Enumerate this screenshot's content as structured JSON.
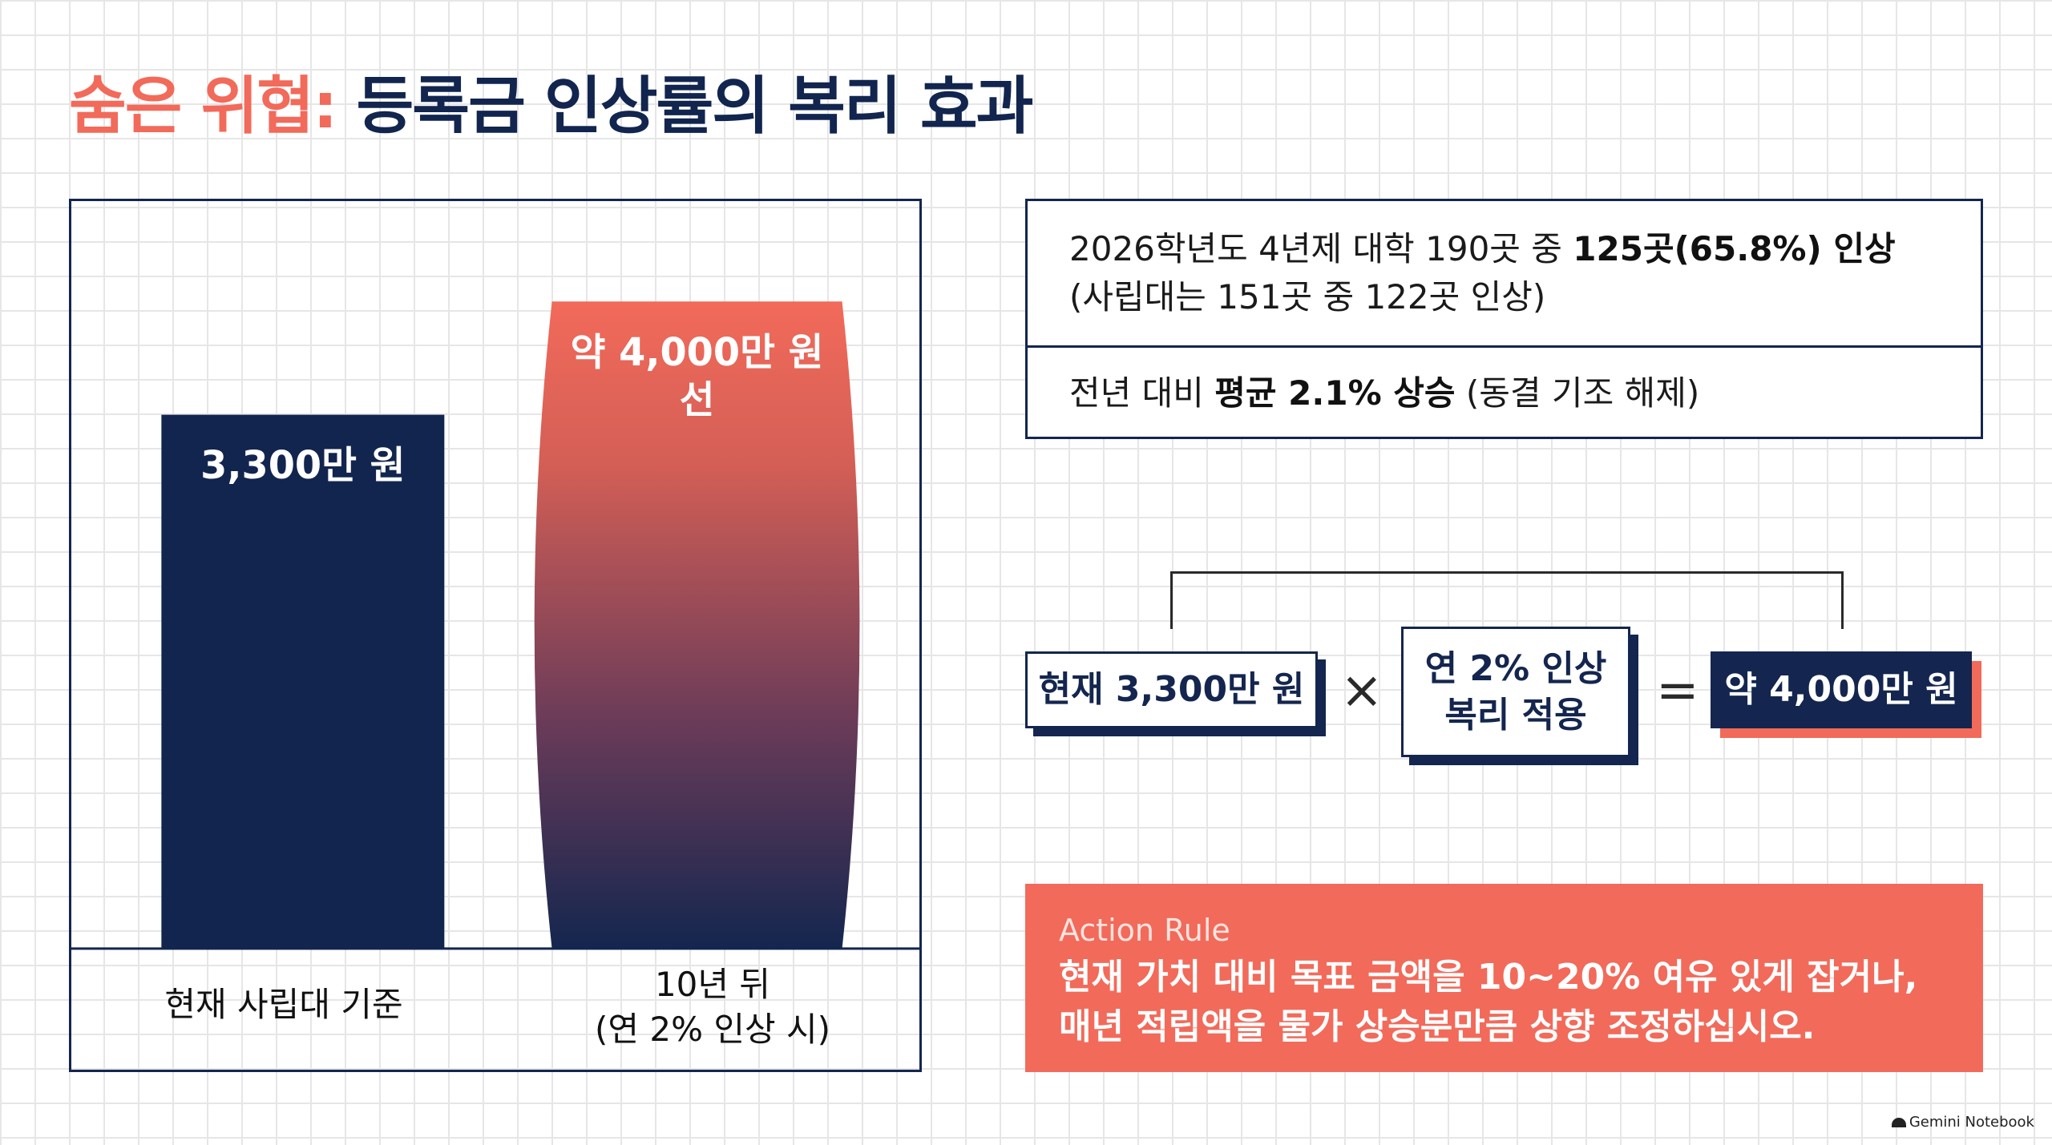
{
  "title": {
    "accent": "숨은 위협:",
    "main": "등록금 인상률의 복리 효과"
  },
  "chart_data": {
    "type": "bar",
    "title": "",
    "xlabel": "",
    "ylabel": "",
    "unit": "만 원",
    "categories": [
      "현재 사립대 기준",
      "10년 뒤\n(연 2% 인상 시)"
    ],
    "values": [
      3300,
      4000
    ],
    "ylim": [
      0,
      4000
    ],
    "data_labels": [
      "3,300만 원",
      "약 4,000만 원\n선"
    ],
    "colors": [
      "#12254e",
      "#f26a5a"
    ],
    "grid": false,
    "legend": "none"
  },
  "info": {
    "row1_prefix": "2026학년도 4년제 대학 190곳 중 ",
    "row1_bold": "125곳(65.8%) 인상",
    "row1_line2": "(사립대는 151곳 중 122곳 인상)",
    "row2_prefix": "전년 대비 ",
    "row2_bold": "평균 2.1% 상승",
    "row2_suffix": " (동결 기조 해제)"
  },
  "equation": {
    "current": "현재 3,300만 원",
    "multiply": "×",
    "rate_line1": "연 2% 인상",
    "rate_line2": "복리 적용",
    "equals": "=",
    "result": "약 4,000만 원"
  },
  "action": {
    "title": "Action Rule",
    "line1": "현재 가치 대비 목표 금액을 10~20% 여유 있게 잡거나,",
    "line2": "매년 적립액을 물가 상승분만큼 상향 조정하십시오."
  },
  "footer": {
    "brand": "Gemini Notebook"
  }
}
